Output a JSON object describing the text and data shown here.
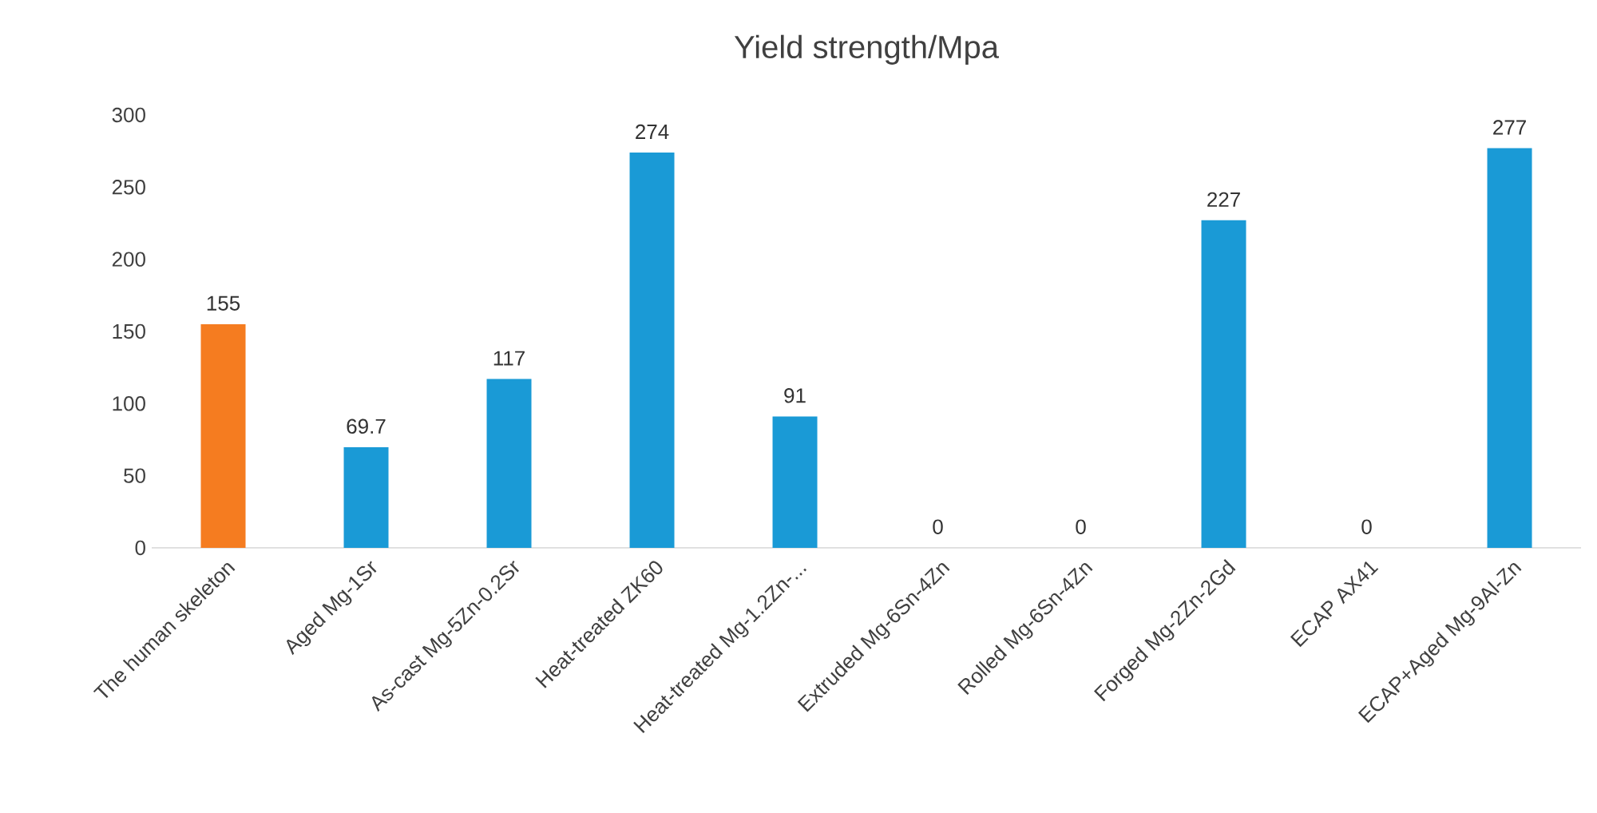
{
  "chart_data": {
    "type": "bar",
    "title": "Yield strength/Mpa",
    "categories": [
      "The human skeleton",
      "Aged Mg-1Sr",
      "As-cast Mg-5Zn-0.2Sr",
      "Heat-treated ZK60",
      "Heat-treated Mg-1.2Zn-...",
      "Extruded Mg-6Sn-4Zn",
      "Rolled Mg-6Sn-4Zn",
      "Forged Mg-2Zn-2Gd",
      "ECAP AX41",
      "ECAP+Aged Mg-9Al-Zn"
    ],
    "values": [
      155,
      69.7,
      117,
      274,
      91,
      0,
      0,
      227,
      0,
      277
    ],
    "value_labels": [
      "155",
      "69.7",
      "117",
      "274",
      "91",
      "0",
      "0",
      "227",
      "0",
      "277"
    ],
    "colors": [
      "#f57c20",
      "#1a9ad6",
      "#1a9ad6",
      "#1a9ad6",
      "#1a9ad6",
      "#1a9ad6",
      "#1a9ad6",
      "#1a9ad6",
      "#1a9ad6",
      "#1a9ad6"
    ],
    "ylim": [
      0,
      300
    ],
    "yticks": [
      0,
      50,
      100,
      150,
      200,
      250,
      300
    ]
  }
}
